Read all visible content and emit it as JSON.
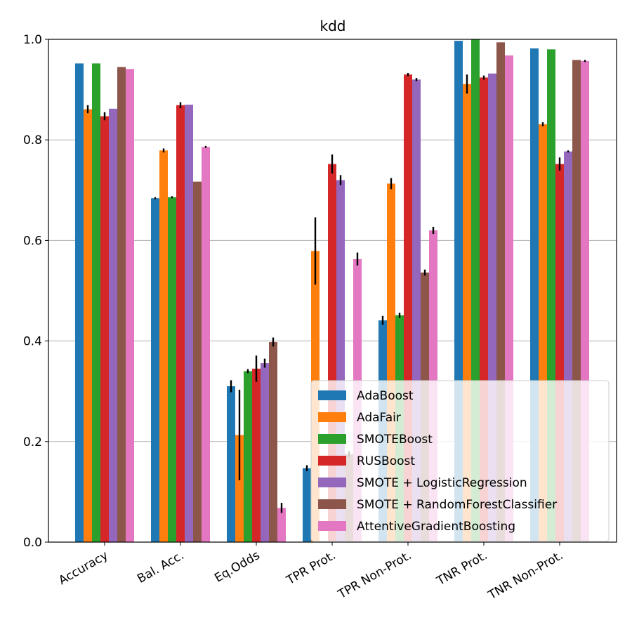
{
  "chart_data": {
    "type": "bar",
    "title": "kdd",
    "xlabel": "",
    "ylabel": "",
    "ylim": [
      0,
      1.0
    ],
    "yticks": [
      "0.0",
      "0.2",
      "0.4",
      "0.6",
      "0.8",
      "1.0"
    ],
    "grid": "horizontal",
    "legend_position": "lower-right",
    "categories": [
      "Accuracy",
      "Bal. Acc.",
      "Eq.Odds",
      "TPR Prot.",
      "TPR Non-Prot.",
      "TNR Prot.",
      "TNR Non-Prot."
    ],
    "series": [
      {
        "name": "AdaBoost",
        "color": "#1f77b4",
        "values": [
          0.952,
          0.684,
          0.31,
          0.147,
          0.441,
          0.997,
          0.982
        ],
        "errors": [
          0.0,
          0.002,
          0.012,
          0.006,
          0.009,
          0.001,
          0.001
        ]
      },
      {
        "name": "AdaFair",
        "color": "#ff7f0e",
        "values": [
          0.861,
          0.779,
          0.213,
          0.579,
          0.713,
          0.911,
          0.831
        ],
        "errors": [
          0.008,
          0.004,
          0.09,
          0.067,
          0.011,
          0.019,
          0.004
        ]
      },
      {
        "name": "SMOTEBoost",
        "color": "#2ca02c",
        "values": [
          0.952,
          0.686,
          0.34,
          0.0,
          0.451,
          1.0,
          0.98
        ],
        "errors": [
          0.0,
          0.002,
          0.004,
          0.0,
          0.005,
          0.0,
          0.001
        ]
      },
      {
        "name": "RUSBoost",
        "color": "#d62728",
        "values": [
          0.847,
          0.869,
          0.345,
          0.752,
          0.93,
          0.924,
          0.752
        ],
        "errors": [
          0.008,
          0.006,
          0.026,
          0.019,
          0.003,
          0.004,
          0.013
        ]
      },
      {
        "name": "SMOTE + LogisticRegression",
        "color": "#9467bd",
        "values": [
          0.862,
          0.87,
          0.356,
          0.72,
          0.92,
          0.932,
          0.777
        ],
        "errors": [
          0.001,
          0.001,
          0.009,
          0.01,
          0.003,
          0.001,
          0.002
        ]
      },
      {
        "name": "SMOTE + RandomForestClassifier",
        "color": "#8c564b",
        "values": [
          0.945,
          0.717,
          0.398,
          0.175,
          0.536,
          0.994,
          0.959
        ],
        "errors": [
          0.001,
          0.001,
          0.009,
          0.006,
          0.006,
          0.001,
          0.001
        ]
      },
      {
        "name": "AttentiveGradientBoosting",
        "color": "#e377c2",
        "values": [
          0.941,
          0.786,
          0.068,
          0.563,
          0.62,
          0.968,
          0.957
        ],
        "errors": [
          0.001,
          0.002,
          0.01,
          0.013,
          0.007,
          0.001,
          0.002
        ]
      }
    ]
  }
}
